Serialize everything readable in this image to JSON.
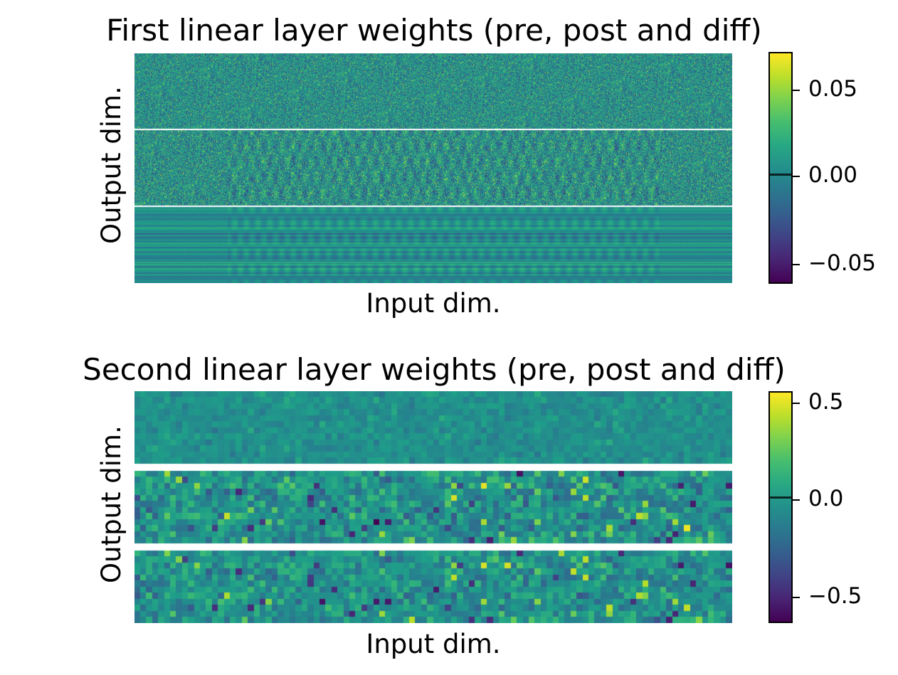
{
  "chart_data": [
    {
      "type": "heatmap",
      "title": "First linear layer weights (pre, post and diff)",
      "xlabel": "Input dim.",
      "ylabel": "Output dim.",
      "panels": [
        "pre",
        "post",
        "diff"
      ],
      "colorbar": {
        "colormap": "viridis",
        "range": [
          -0.062,
          0.07
        ],
        "ticks": [
          0.05,
          0.0,
          -0.05
        ],
        "tick_labels": [
          "0.05",
          "0.00",
          "−0.05"
        ],
        "zero_marker": 0.0
      }
    },
    {
      "type": "heatmap",
      "title": "Second linear layer weights (pre, post and diff)",
      "xlabel": "Input dim.",
      "ylabel": "Output dim.",
      "panels": [
        "pre",
        "post",
        "diff"
      ],
      "colorbar": {
        "colormap": "viridis",
        "range": [
          -0.64,
          0.55
        ],
        "ticks": [
          0.5,
          0.0,
          -0.5
        ],
        "tick_labels": [
          "0.5",
          "0.0",
          "−0.5"
        ],
        "zero_marker": 0.0
      }
    }
  ]
}
